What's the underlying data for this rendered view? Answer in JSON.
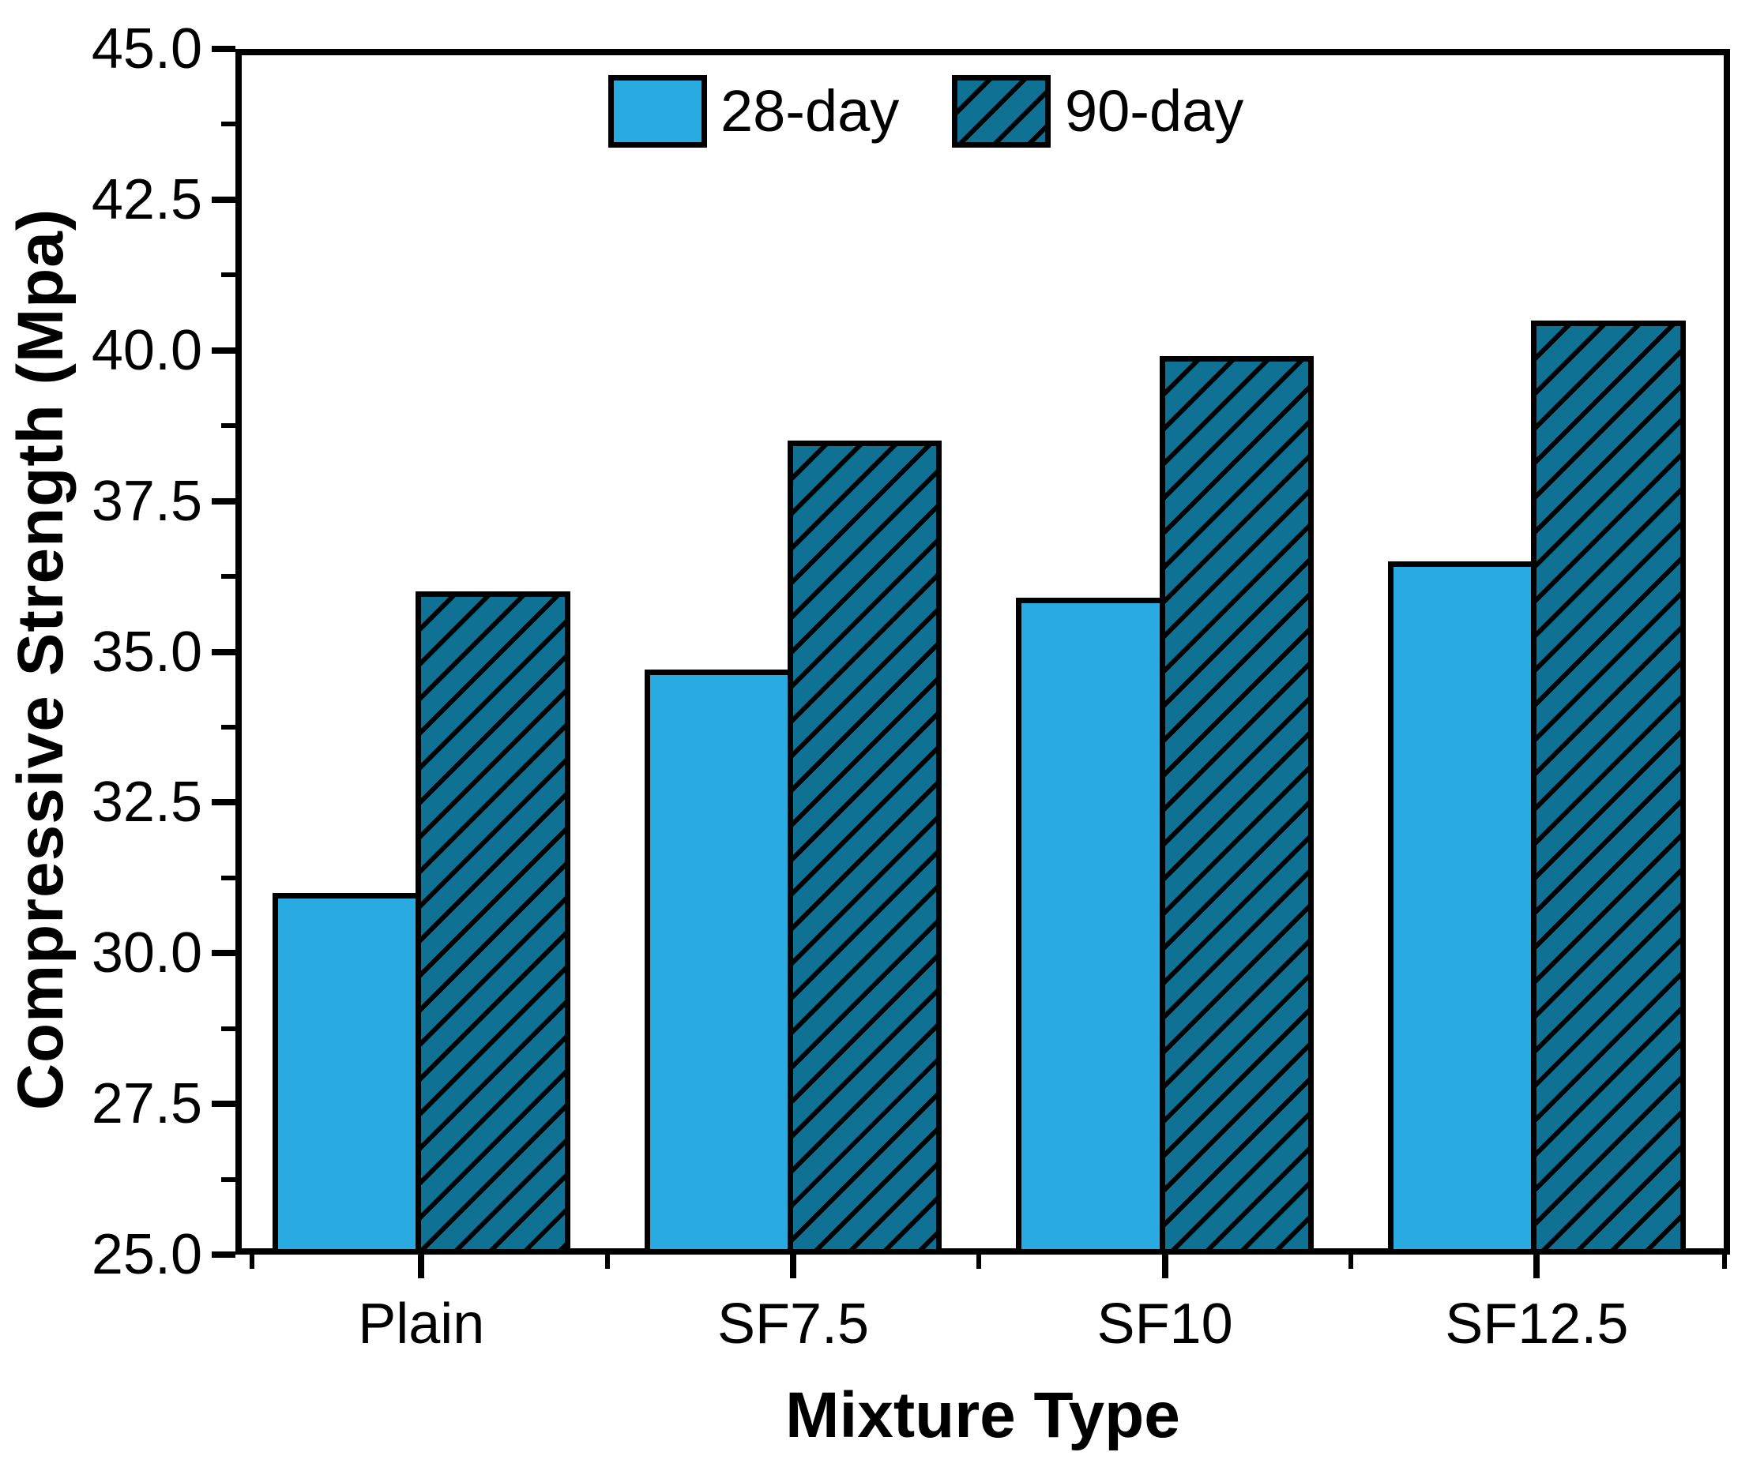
{
  "figure": {
    "y_axis_title": "Compressive Strength (Mpa)",
    "x_axis_title": "Mixture Type"
  },
  "legend": {
    "items": [
      {
        "label": "28-day"
      },
      {
        "label": "90-day"
      }
    ]
  },
  "chart_data": {
    "type": "bar",
    "title": "",
    "categories": [
      "Plain",
      "SF7.5",
      "SF10",
      "SF12.5"
    ],
    "series": [
      {
        "name": "28-day",
        "values": [
          31.0,
          34.7,
          35.9,
          36.5
        ],
        "color": "#29ABE2",
        "hatch": false
      },
      {
        "name": "90-day",
        "values": [
          36.0,
          38.5,
          39.9,
          40.5
        ],
        "color": "#0F7193",
        "hatch": true
      }
    ],
    "xlabel": "Mixture Type",
    "ylabel": "Compressive Strength (Mpa)",
    "ylim": [
      25.0,
      45.0
    ],
    "yticks": [
      25.0,
      27.5,
      30.0,
      32.5,
      35.0,
      37.5,
      40.0,
      42.5,
      45.0
    ],
    "y_minor_tick_interval": 1.25,
    "grid": false,
    "legend_position": "top-center",
    "bar_edge_color": "#000000",
    "hatch_pattern": "/",
    "hatch_color": "#000000"
  }
}
